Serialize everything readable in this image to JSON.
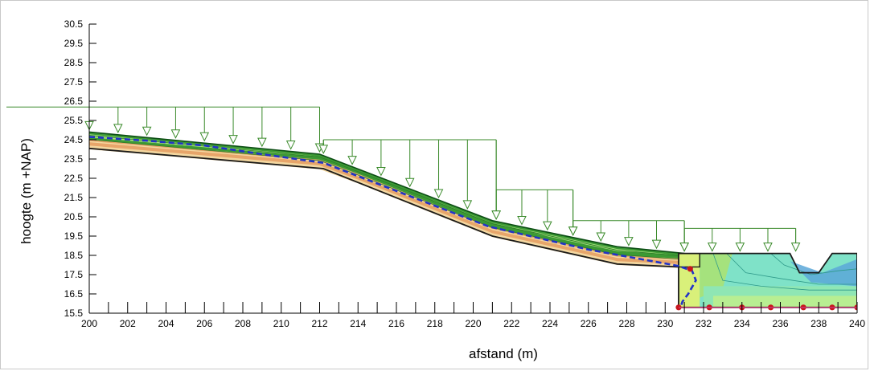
{
  "chart_data": {
    "type": "area",
    "xlabel": "afstand (m)",
    "ylabel": "hoogte (m +NAP)",
    "xlim": [
      200,
      240
    ],
    "ylim": [
      15.5,
      30.5
    ],
    "x_ticks": [
      "200",
      "202",
      "204",
      "206",
      "208",
      "210",
      "212",
      "214",
      "216",
      "218",
      "220",
      "222",
      "224",
      "226",
      "228",
      "230",
      "232",
      "234",
      "236",
      "238",
      "240"
    ],
    "y_ticks": [
      "15.5",
      "16.5",
      "17.5",
      "18.5",
      "19.5",
      "20.5",
      "21.5",
      "22.5",
      "23.5",
      "24.5",
      "25.5",
      "26.5",
      "27.5",
      "28.5",
      "29.5",
      "30.5"
    ],
    "grid": false,
    "colors": {
      "base_soil": "#f3d7a0",
      "orange_layer": "#e7a56a",
      "dark_line": "#1a1a1a",
      "green_dark": "#3c9a34",
      "green_light": "#a5e27d",
      "yellow_green": "#d9f07a",
      "cyan_block": "#7fe2c8",
      "blue_block": "#5aa7d8",
      "phreatic_line": "#2233c8",
      "load_arrows": "#3a8a2a",
      "markers": "#c8161c"
    },
    "surface_profile": {
      "x": [
        200,
        212,
        221,
        227.5,
        231,
        240
      ],
      "y": [
        24.9,
        23.75,
        20.3,
        18.95,
        18.6,
        18.6
      ]
    },
    "dike_toe_line": {
      "x": [
        200,
        212.2,
        221,
        227.5,
        230.7
      ],
      "y": [
        24.05,
        23.0,
        19.5,
        18.05,
        17.9
      ]
    },
    "phreatic_line": {
      "x": [
        200,
        203,
        206,
        209,
        212.2,
        220.8,
        226,
        230.7,
        231.4,
        231.6,
        231.2,
        230.9,
        230.8
      ],
      "y": [
        24.65,
        24.45,
        24.2,
        23.75,
        23.3,
        20.0,
        18.8,
        17.95,
        17.7,
        17.2,
        16.5,
        16.1,
        15.8
      ]
    },
    "ditch_profile": {
      "x": [
        230.7,
        236.5,
        237.0,
        238.0,
        238.7,
        240.0,
        240.0,
        230.7
      ],
      "y": [
        18.6,
        18.6,
        17.6,
        17.6,
        18.6,
        18.6,
        15.8,
        15.8
      ]
    },
    "load_zones": [
      {
        "x": [
          200,
          212
        ],
        "top": 26.2
      },
      {
        "x": [
          212.2,
          221.2
        ],
        "top": 24.5
      },
      {
        "x": [
          221.2,
          225.2
        ],
        "top": 21.9
      },
      {
        "x": [
          225.2,
          231
        ],
        "top": 20.3
      },
      {
        "x": [
          231,
          236.8
        ],
        "top": 19.9
      }
    ],
    "markers": {
      "x": [
        231.3,
        230.7,
        232.3,
        234.0,
        235.5,
        237.2,
        238.7,
        240.0
      ],
      "y": [
        17.8,
        15.8,
        15.8,
        15.8,
        15.8,
        15.8,
        15.8,
        15.8
      ]
    }
  }
}
